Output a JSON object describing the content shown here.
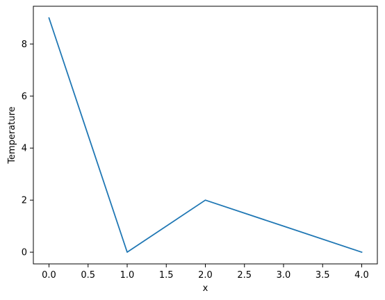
{
  "chart_data": {
    "type": "line",
    "title": "",
    "xlabel": "x",
    "ylabel": "Temperature",
    "x": [
      0,
      1,
      2,
      3,
      4
    ],
    "series": [
      {
        "values": [
          9,
          0,
          2,
          1,
          0
        ],
        "color": "#1f77b4"
      }
    ],
    "xlim": [
      -0.2,
      4.2
    ],
    "ylim": [
      -0.45,
      9.45
    ],
    "xticks": [
      0.0,
      0.5,
      1.0,
      1.5,
      2.0,
      2.5,
      3.0,
      3.5,
      4.0
    ],
    "xtick_labels": [
      "0.0",
      "0.5",
      "1.0",
      "1.5",
      "2.0",
      "2.5",
      "3.0",
      "3.5",
      "4.0"
    ],
    "yticks": [
      0,
      2,
      4,
      6,
      8
    ],
    "ytick_labels": [
      "0",
      "2",
      "4",
      "6",
      "8"
    ],
    "grid": false,
    "legend": "none"
  }
}
